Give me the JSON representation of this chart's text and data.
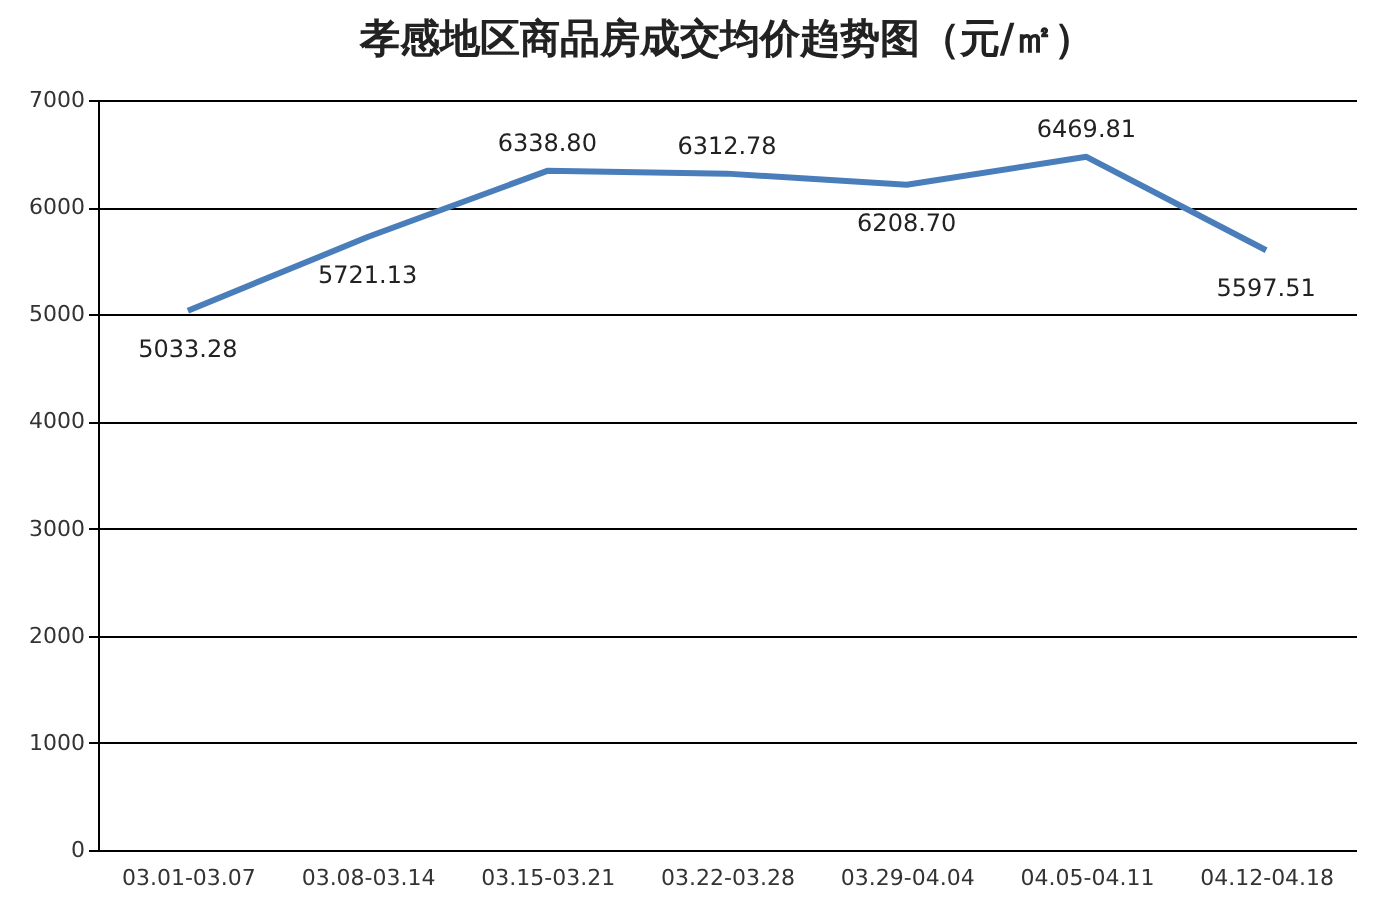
{
  "chart_data": {
    "type": "line",
    "title": "孝感地区商品房成交均价趋势图（元/㎡）",
    "categories": [
      "03.01-03.07",
      "03.08-03.14",
      "03.15-03.21",
      "03.22-03.28",
      "03.29-04.04",
      "04.05-04.11",
      "04.12-04.18"
    ],
    "series": [
      {
        "color": "#4a7ebb",
        "values": [
          5033.28,
          5721.13,
          6338.8,
          6312.78,
          6208.7,
          6469.81,
          5597.51
        ],
        "value_labels": [
          "5033.28",
          "5721.13",
          "6338.80",
          "6312.78",
          "6208.70",
          "6469.81",
          "5597.51"
        ]
      }
    ],
    "ylim": [
      0,
      7000
    ],
    "yticks": [
      0,
      1000,
      2000,
      3000,
      4000,
      5000,
      6000,
      7000
    ],
    "grid": "y",
    "marker": "none",
    "line_style": "solid"
  }
}
